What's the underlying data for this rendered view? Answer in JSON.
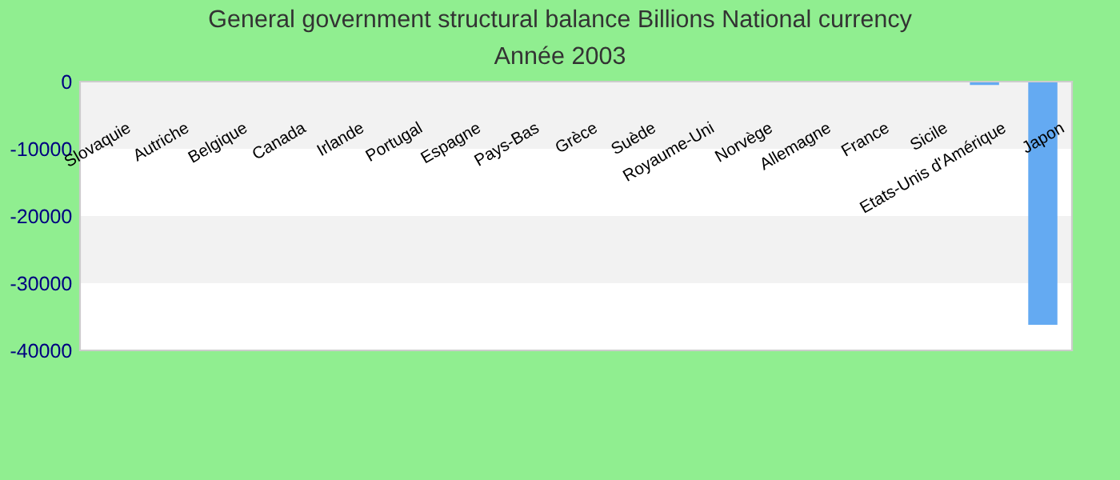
{
  "chart_data": {
    "type": "bar",
    "title": "General government structural balance Billions National currency",
    "subtitle": "Année 2003",
    "categories": [
      "Slovaquie",
      "Autriche",
      "Belgique",
      "Canada",
      "Irlande",
      "Portugal",
      "Espagne",
      "Pays-Bas",
      "Grèce",
      "Suède",
      "Royaume-Uni",
      "Norvège",
      "Allemagne",
      "France",
      "Sicile",
      "Etats-Unis d'Amérique",
      "Japon"
    ],
    "values": [
      0,
      0,
      0,
      0,
      0,
      0,
      0,
      0,
      0,
      0,
      0,
      0,
      0,
      0,
      0,
      -500,
      -36200
    ],
    "color": "#64aaf2",
    "ylim": [
      -40000,
      0
    ],
    "yticks": [
      0,
      -10000,
      -20000,
      -30000,
      -40000
    ],
    "bands": [
      {
        "axis": "y",
        "from": -10000,
        "to": 0,
        "color": "#f2f2f2"
      },
      {
        "axis": "y",
        "from": -30000,
        "to": -20000,
        "color": "#f2f2f2"
      }
    ]
  }
}
